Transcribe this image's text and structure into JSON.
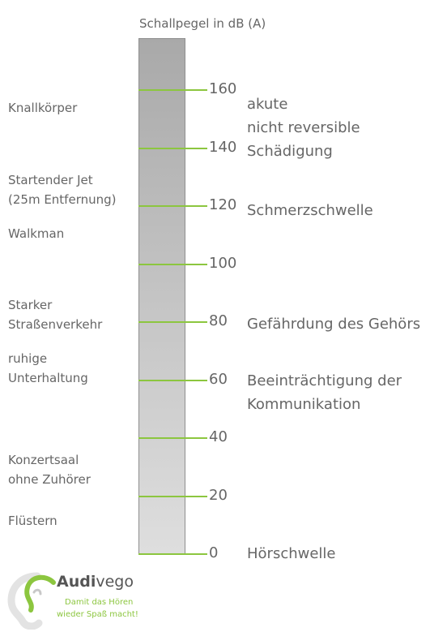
{
  "title": "Schallpegel in dB (A)",
  "scale": {
    "ticks": [
      "160",
      "140",
      "120",
      "100",
      "80",
      "60",
      "40",
      "20",
      "0"
    ],
    "tick_values": [
      160,
      140,
      120,
      100,
      80,
      60,
      40,
      20,
      0
    ],
    "accent_color": "#8cc63f"
  },
  "sources": [
    {
      "lines": [
        "Knallkörper"
      ]
    },
    {
      "lines": [
        "Startender Jet",
        "(25m Entfernung)"
      ]
    },
    {
      "lines": [
        "Walkman"
      ]
    },
    {
      "lines": [
        "Starker",
        "Straßenverkehr"
      ]
    },
    {
      "lines": [
        "ruhige",
        "Unterhaltung"
      ]
    },
    {
      "lines": [
        "Konzertsaal",
        "ohne Zuhörer"
      ]
    },
    {
      "lines": [
        "Flüstern"
      ]
    }
  ],
  "effects": [
    {
      "lines": [
        "akute",
        "nicht reversible",
        "Schädigung"
      ]
    },
    {
      "lines": [
        "Schmerzschwelle"
      ]
    },
    {
      "lines": [
        "Gefährdung des Gehörs"
      ]
    },
    {
      "lines": [
        "Beeinträchtigung der",
        "Kommunikation"
      ]
    },
    {
      "lines": [
        "Hörschwelle"
      ]
    }
  ],
  "logo": {
    "name_part1": "Audi",
    "name_part2": "vego",
    "tagline_line1": "Damit das Hören",
    "tagline_line2": "wieder Spaß macht!"
  }
}
